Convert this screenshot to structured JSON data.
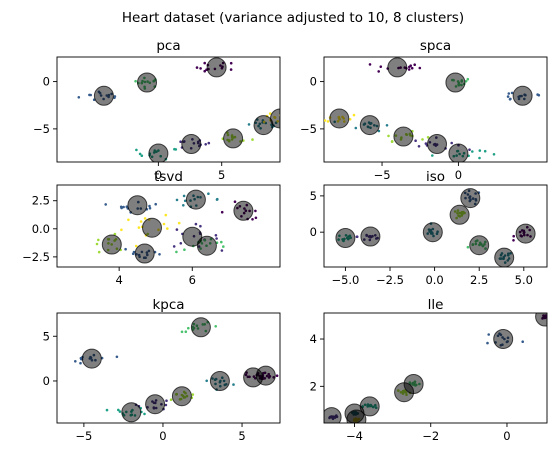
{
  "figure": {
    "suptitle": "Heart dataset (variance adjusted to 10, 8 clusters)"
  },
  "palette": {
    "c0": "#440154",
    "c1": "#46327e",
    "c2": "#365c8d",
    "c3": "#277f8e",
    "c4": "#1fa187",
    "c5": "#4ac16d",
    "c6": "#a0da39",
    "c7": "#fde725",
    "center_fill": "#000000"
  },
  "chart_data": [
    {
      "type": "scatter",
      "title": "pca",
      "xlim": [
        -8.0,
        9.6
      ],
      "ylim": [
        -8.5,
        2.6
      ],
      "xticks": [
        0,
        5
      ],
      "yticks": [
        0,
        -5
      ],
      "centers": [
        [
          -4.3,
          -1.5
        ],
        [
          -0.9,
          -0.1
        ],
        [
          4.6,
          1.5
        ],
        [
          0,
          -7.6
        ],
        [
          2.6,
          -6.6
        ],
        [
          5.9,
          -6.0
        ],
        [
          8.3,
          -4.6
        ],
        [
          9.6,
          -3.9
        ]
      ],
      "clusters": [
        {
          "color": "c2",
          "center": 0,
          "spread": [
            1.6,
            0.5
          ]
        },
        {
          "color": "c5",
          "center": 1,
          "spread": [
            0.9,
            0.4
          ]
        },
        {
          "color": "c0",
          "center": 2,
          "spread": [
            1.3,
            0.5
          ]
        },
        {
          "color": "c4",
          "center": 3,
          "spread": [
            1.4,
            0.5
          ]
        },
        {
          "color": "c1",
          "center": 4,
          "spread": [
            1.3,
            0.5
          ]
        },
        {
          "color": "c6",
          "center": 5,
          "spread": [
            1.2,
            0.4
          ]
        },
        {
          "color": "c3",
          "center": 6,
          "spread": [
            1.1,
            0.5
          ]
        },
        {
          "color": "c7",
          "center": 7,
          "spread": [
            1.1,
            0.4
          ]
        }
      ]
    },
    {
      "type": "scatter",
      "title": "spca",
      "xlim": [
        -8.8,
        5.8
      ],
      "ylim": [
        -8.5,
        2.6
      ],
      "xticks": [
        -5,
        0
      ],
      "yticks": [
        0,
        -5
      ],
      "centers": [
        [
          -4.0,
          1.5
        ],
        [
          -0.2,
          -0.1
        ],
        [
          4.2,
          -1.5
        ],
        [
          -7.8,
          -3.9
        ],
        [
          -5.8,
          -4.6
        ],
        [
          -3.6,
          -5.8
        ],
        [
          -1.4,
          -6.6
        ],
        [
          0,
          -7.6
        ]
      ],
      "clusters": [
        {
          "color": "c0",
          "center": 0,
          "spread": [
            1.3,
            0.5
          ]
        },
        {
          "color": "c5",
          "center": 1,
          "spread": [
            0.9,
            0.4
          ]
        },
        {
          "color": "c2",
          "center": 2,
          "spread": [
            1.5,
            0.5
          ]
        },
        {
          "color": "c7",
          "center": 3,
          "spread": [
            1.1,
            0.4
          ]
        },
        {
          "color": "c3",
          "center": 4,
          "spread": [
            1.1,
            0.5
          ]
        },
        {
          "color": "c6",
          "center": 5,
          "spread": [
            1.2,
            0.4
          ]
        },
        {
          "color": "c1",
          "center": 6,
          "spread": [
            1.3,
            0.5
          ]
        },
        {
          "color": "c4",
          "center": 7,
          "spread": [
            1.4,
            0.5
          ]
        }
      ]
    },
    {
      "type": "scatter",
      "title": "tsvd",
      "xlim": [
        2.3,
        8.4
      ],
      "ylim": [
        -3.4,
        3.9
      ],
      "xticks": [
        4,
        6
      ],
      "yticks": [
        2.5,
        0.0,
        -2.5
      ],
      "yformat": 1,
      "centers": [
        [
          3.8,
          -1.4
        ],
        [
          4.5,
          2.1
        ],
        [
          4.9,
          0.1
        ],
        [
          4.7,
          -2.2
        ],
        [
          6.1,
          2.6
        ],
        [
          7.4,
          1.6
        ],
        [
          6.0,
          -0.7
        ],
        [
          6.4,
          -1.5
        ]
      ],
      "clusters": [
        {
          "color": "c6",
          "center": 0,
          "spread": [
            0.8,
            0.9
          ]
        },
        {
          "color": "c2",
          "center": 1,
          "spread": [
            0.5,
            0.5
          ]
        },
        {
          "color": "c7",
          "center": 2,
          "spread": [
            0.7,
            0.8
          ]
        },
        {
          "color": "c2",
          "center": 3,
          "spread": [
            0.5,
            0.5
          ]
        },
        {
          "color": "c3",
          "center": 4,
          "spread": [
            0.6,
            0.4
          ]
        },
        {
          "color": "c0",
          "center": 5,
          "spread": [
            0.6,
            0.7
          ]
        },
        {
          "color": "c1",
          "center": 6,
          "spread": [
            0.6,
            0.8
          ]
        },
        {
          "color": "c5",
          "center": 7,
          "spread": [
            0.7,
            0.5
          ]
        }
      ]
    },
    {
      "type": "scatter",
      "title": "iso",
      "xlim": [
        -6.2,
        6.3
      ],
      "ylim": [
        -4.8,
        6.5
      ],
      "xticks": [
        -5.0,
        -2.5,
        0.0,
        2.5,
        5.0
      ],
      "yticks": [
        5,
        0
      ],
      "xformat": 1,
      "centers": [
        [
          -5.0,
          -0.8
        ],
        [
          -3.6,
          -0.6
        ],
        [
          -0.1,
          0.0
        ],
        [
          2.0,
          4.7
        ],
        [
          1.4,
          2.4
        ],
        [
          2.5,
          -1.8
        ],
        [
          3.9,
          -3.5
        ],
        [
          5.1,
          -0.2
        ]
      ],
      "clusters": [
        {
          "color": "c4",
          "center": 0,
          "spread": [
            0.4,
            0.6
          ]
        },
        {
          "color": "c1",
          "center": 1,
          "spread": [
            0.6,
            0.7
          ]
        },
        {
          "color": "c3",
          "center": 2,
          "spread": [
            0.4,
            0.6
          ]
        },
        {
          "color": "c2",
          "center": 3,
          "spread": [
            0.5,
            0.8
          ]
        },
        {
          "color": "c6",
          "center": 4,
          "spread": [
            0.3,
            0.5
          ]
        },
        {
          "color": "c5",
          "center": 5,
          "spread": [
            0.4,
            0.5
          ]
        },
        {
          "color": "c3",
          "center": 6,
          "spread": [
            0.4,
            0.7
          ]
        },
        {
          "color": "c0",
          "center": 7,
          "spread": [
            0.5,
            0.6
          ]
        }
      ]
    },
    {
      "type": "scatter",
      "title": "kpca",
      "xlim": [
        -6.7,
        7.4
      ],
      "ylim": [
        -4.7,
        7.6
      ],
      "xticks": [
        -5,
        0,
        5
      ],
      "yticks": [
        5,
        0
      ],
      "centers": [
        [
          -4.5,
          2.5
        ],
        [
          -2.0,
          -3.5
        ],
        [
          -0.5,
          -2.6
        ],
        [
          2.4,
          6.0
        ],
        [
          1.2,
          -1.7
        ],
        [
          3.6,
          0.0
        ],
        [
          5.7,
          0.4
        ],
        [
          6.5,
          0.6
        ]
      ],
      "clusters": [
        {
          "color": "c2",
          "center": 0,
          "spread": [
            1.1,
            0.5
          ]
        },
        {
          "color": "c4",
          "center": 1,
          "spread": [
            0.9,
            0.4
          ]
        },
        {
          "color": "c1",
          "center": 2,
          "spread": [
            0.9,
            0.5
          ]
        },
        {
          "color": "c5",
          "center": 3,
          "spread": [
            1.2,
            0.4
          ]
        },
        {
          "color": "c6",
          "center": 4,
          "spread": [
            0.8,
            0.5
          ]
        },
        {
          "color": "c3",
          "center": 5,
          "spread": [
            0.6,
            0.4
          ]
        },
        {
          "color": "c0",
          "center": 6,
          "spread": [
            0.8,
            0.4
          ]
        },
        {
          "color": "c0",
          "center": 7,
          "spread": [
            0.5,
            0.3
          ]
        }
      ]
    },
    {
      "type": "scatter",
      "title": "lle",
      "xlim": [
        -4.8,
        1.05
      ],
      "ylim": [
        0.45,
        5.1
      ],
      "xticks": [
        -4,
        -2,
        0
      ],
      "yticks": [
        4,
        2
      ],
      "centers": [
        [
          -4.6,
          0.7
        ],
        [
          -4.0,
          0.85
        ],
        [
          -3.6,
          1.15
        ],
        [
          -2.7,
          1.75
        ],
        [
          -2.45,
          2.1
        ],
        [
          -0.1,
          4.0
        ],
        [
          1.0,
          4.95
        ],
        [
          -3.95,
          0.6
        ]
      ],
      "clusters": [
        {
          "color": "c1",
          "center": 0,
          "spread": [
            0.1,
            0.05
          ]
        },
        {
          "color": "c3",
          "center": 1,
          "spread": [
            0.1,
            0.06
          ]
        },
        {
          "color": "c4",
          "center": 2,
          "spread": [
            0.15,
            0.1
          ]
        },
        {
          "color": "c6",
          "center": 3,
          "spread": [
            0.15,
            0.1
          ]
        },
        {
          "color": "c5",
          "center": 4,
          "spread": [
            0.15,
            0.12
          ]
        },
        {
          "color": "c2",
          "center": 5,
          "spread": [
            0.4,
            0.3
          ]
        },
        {
          "color": "c0",
          "center": 6,
          "spread": [
            0.08,
            0.08
          ]
        },
        {
          "color": "c7",
          "center": 7,
          "spread": [
            0.08,
            0.05
          ]
        }
      ]
    }
  ]
}
